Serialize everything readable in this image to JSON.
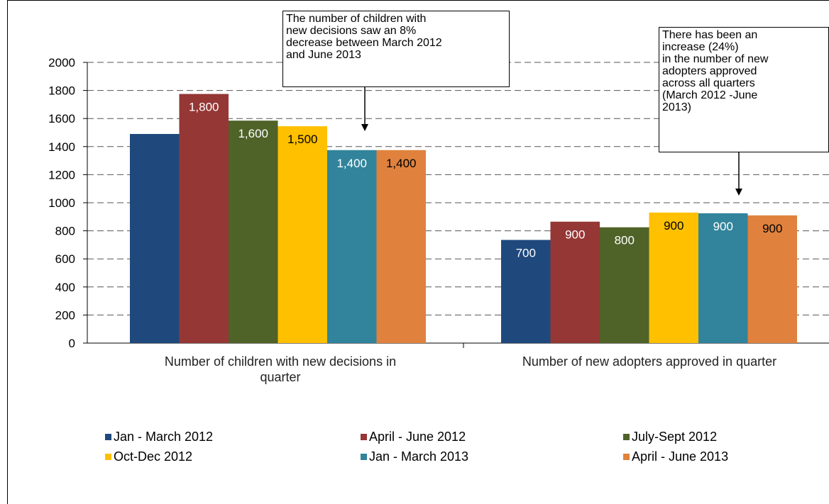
{
  "chart_data": {
    "type": "bar",
    "title": "",
    "xlabel": "",
    "ylabel": "",
    "ylim": [
      0,
      2000
    ],
    "yticks": [
      0,
      200,
      400,
      600,
      800,
      1000,
      1200,
      1400,
      1600,
      1800,
      2000
    ],
    "grid": "horizontal dashed",
    "legend_position": "bottom",
    "categories": [
      "Number of children with new decisions in quarter",
      "Number of new adopters approved in quarter"
    ],
    "series": [
      {
        "name": "Jan - March 2012",
        "color": "#1f497d",
        "values": [
          1490,
          735
        ],
        "labels": [
          "",
          "700"
        ],
        "label_color": "#ffffff"
      },
      {
        "name": "April - June 2012",
        "color": "#953735",
        "values": [
          1775,
          865
        ],
        "labels": [
          "1,800",
          "900"
        ],
        "label_color": "#ffffff"
      },
      {
        "name": "July-Sept 2012",
        "color": "#4f6228",
        "values": [
          1585,
          825
        ],
        "labels": [
          "1,600",
          "800"
        ],
        "label_color": "#ffffff"
      },
      {
        "name": "Oct-Dec 2012",
        "color": "#ffc000",
        "values": [
          1545,
          930
        ],
        "labels": [
          "1,500",
          "900"
        ],
        "label_color": "#000000"
      },
      {
        "name": "Jan - March 2013",
        "color": "#31849b",
        "values": [
          1375,
          925
        ],
        "labels": [
          "1,400",
          "900"
        ],
        "label_color": "#ffffff"
      },
      {
        "name": "April - June 2013",
        "color": "#e0823d",
        "values": [
          1375,
          910
        ],
        "labels": [
          "1,400",
          "900"
        ],
        "label_color": "#000000"
      }
    ],
    "annotations": [
      {
        "lines": [
          "The number of children with",
          "new decisions saw an 8%",
          "decrease between March 2012",
          "and June 2013"
        ]
      },
      {
        "lines": [
          "There has been an",
          "increase (24%)",
          "in the number of new",
          "adopters approved",
          "across all quarters",
          "(March 2012 -June",
          "2013)"
        ]
      }
    ]
  }
}
